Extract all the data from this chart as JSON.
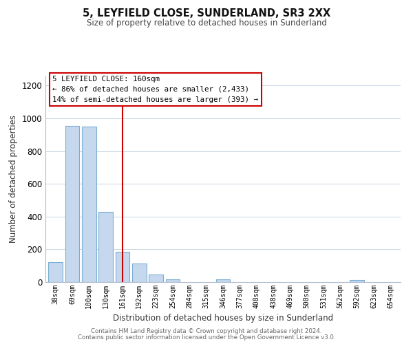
{
  "title": "5, LEYFIELD CLOSE, SUNDERLAND, SR3 2XX",
  "subtitle": "Size of property relative to detached houses in Sunderland",
  "xlabel": "Distribution of detached houses by size in Sunderland",
  "ylabel": "Number of detached properties",
  "categories": [
    "38sqm",
    "69sqm",
    "100sqm",
    "130sqm",
    "161sqm",
    "192sqm",
    "223sqm",
    "254sqm",
    "284sqm",
    "315sqm",
    "346sqm",
    "377sqm",
    "408sqm",
    "438sqm",
    "469sqm",
    "500sqm",
    "531sqm",
    "562sqm",
    "592sqm",
    "623sqm",
    "654sqm"
  ],
  "values": [
    120,
    955,
    950,
    430,
    185,
    115,
    48,
    18,
    0,
    0,
    15,
    0,
    0,
    0,
    0,
    0,
    0,
    0,
    12,
    0,
    0
  ],
  "bar_color": "#c5d8ee",
  "bar_edge_color": "#7bafd4",
  "vline_x": 4,
  "vline_color": "#cc0000",
  "annotation_title": "5 LEYFIELD CLOSE: 160sqm",
  "annotation_line1": "← 86% of detached houses are smaller (2,433)",
  "annotation_line2": "14% of semi-detached houses are larger (393) →",
  "annotation_box_color": "#ffffff",
  "annotation_box_edgecolor": "#cc0000",
  "ylim": [
    0,
    1260
  ],
  "yticks": [
    0,
    200,
    400,
    600,
    800,
    1000,
    1200
  ],
  "footer_line1": "Contains HM Land Registry data © Crown copyright and database right 2024.",
  "footer_line2": "Contains public sector information licensed under the Open Government Licence v3.0.",
  "bg_color": "#ffffff",
  "grid_color": "#c8d4e4"
}
